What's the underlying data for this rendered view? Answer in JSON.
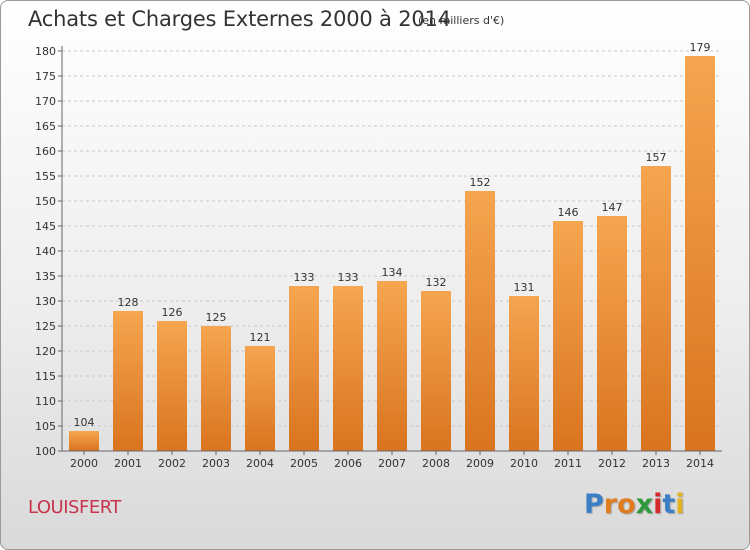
{
  "header": {
    "title": "Achats et Charges Externes 2000 à 2014",
    "subtitle": "(en milliers d'€)"
  },
  "footer": {
    "commune": "LOUISFERT",
    "logo_text": "Proxiti",
    "logo_colors": [
      "#3a7fc6",
      "#e07b1f",
      "#e07b1f",
      "#2e9a3c",
      "#d42a2a",
      "#3a7fc6",
      "#e0b21f"
    ]
  },
  "colors": {
    "bar_top": "#f6a550",
    "bar_bottom": "#d9741f",
    "grid": "#c8c8c8",
    "text": "#333333"
  },
  "chart_data": {
    "type": "bar",
    "title": "Achats et Charges Externes 2000 à 2014",
    "subtitle": "(en milliers d'€)",
    "categories": [
      "2000",
      "2001",
      "2002",
      "2003",
      "2004",
      "2005",
      "2006",
      "2007",
      "2008",
      "2009",
      "2010",
      "2011",
      "2012",
      "2013",
      "2014"
    ],
    "values": [
      104,
      128,
      126,
      125,
      121,
      133,
      133,
      134,
      132,
      152,
      131,
      146,
      147,
      157,
      179
    ],
    "ylim": [
      100,
      180
    ],
    "yticks": [
      100,
      105,
      110,
      115,
      120,
      125,
      130,
      135,
      140,
      145,
      150,
      155,
      160,
      165,
      170,
      175,
      180
    ],
    "grid": true,
    "xlabel": "",
    "ylabel": ""
  }
}
